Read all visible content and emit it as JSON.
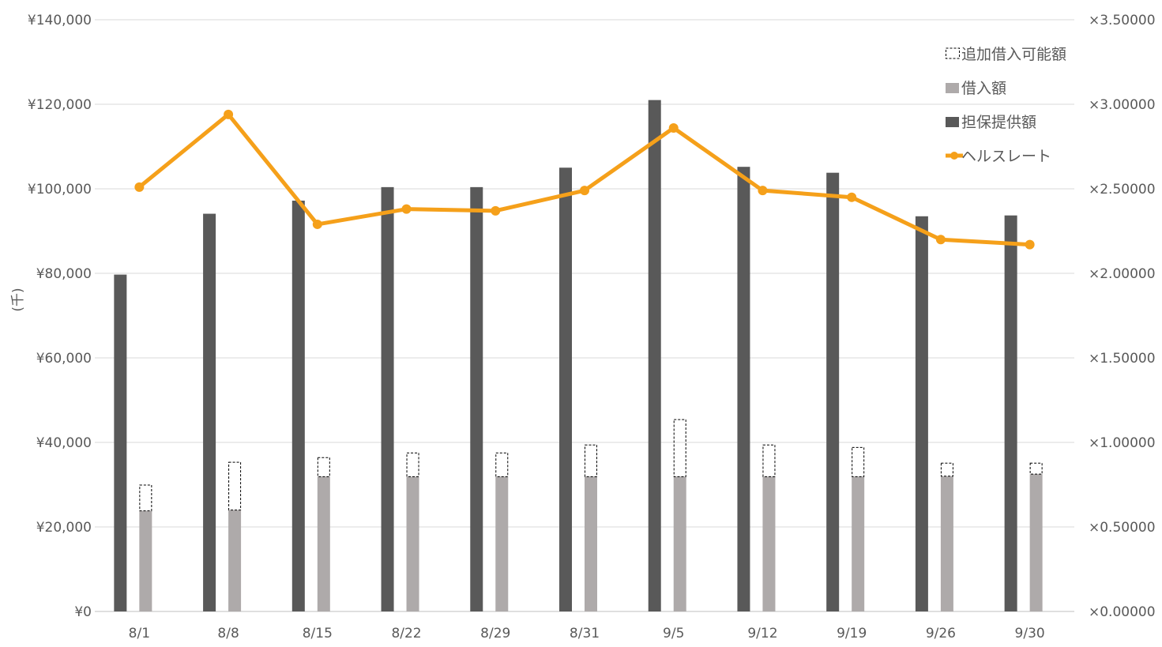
{
  "chart_data": {
    "type": "bar",
    "categories": [
      "8/1",
      "8/8",
      "8/15",
      "8/22",
      "8/29",
      "8/31",
      "9/5",
      "9/12",
      "9/19",
      "9/26",
      "9/30"
    ],
    "series": [
      {
        "name": "担保提供額",
        "type": "bar",
        "axis": "left",
        "color": "#595959",
        "values": [
          79700,
          94100,
          97200,
          100400,
          100400,
          105000,
          121000,
          105200,
          103800,
          93500,
          93700
        ]
      },
      {
        "name": "借入額",
        "type": "stacked-bar",
        "axis": "left",
        "color": "#AEAAAA",
        "values": [
          23800,
          24000,
          31900,
          31900,
          31900,
          31900,
          31900,
          31900,
          31900,
          32000,
          32500
        ]
      },
      {
        "name": "追加借入可能額",
        "type": "stacked-bar-outline",
        "axis": "left",
        "color": "#000000",
        "values": [
          6100,
          11300,
          4500,
          5600,
          5600,
          7500,
          13500,
          7500,
          6900,
          3100,
          2600
        ]
      },
      {
        "name": "ヘルスレート",
        "type": "line",
        "axis": "right",
        "color": "#F5A01A",
        "values": [
          2.51,
          2.94,
          2.29,
          2.38,
          2.37,
          2.49,
          2.86,
          2.49,
          2.45,
          2.2,
          2.17
        ]
      }
    ],
    "y_left": {
      "label": "(千)",
      "ylim": [
        0,
        140000
      ],
      "ticks": [
        0,
        20000,
        40000,
        60000,
        80000,
        100000,
        120000,
        140000
      ],
      "tick_labels": [
        "¥0",
        "¥20,000",
        "¥40,000",
        "¥60,000",
        "¥80,000",
        "¥100,000",
        "¥120,000",
        "¥140,000"
      ]
    },
    "y_right": {
      "ylim": [
        0,
        3.5
      ],
      "ticks": [
        0,
        0.5,
        1,
        1.5,
        2,
        2.5,
        3,
        3.5
      ],
      "tick_labels": [
        "×0.00000",
        "×0.50000",
        "×1.00000",
        "×1.50000",
        "×2.00000",
        "×2.50000",
        "×3.00000",
        "×3.50000"
      ]
    },
    "grid": true,
    "legend": {
      "position": "top-right",
      "order": [
        "追加借入可能額",
        "借入額",
        "担保提供額",
        "ヘルスレート"
      ]
    },
    "title": "",
    "xlabel": ""
  }
}
